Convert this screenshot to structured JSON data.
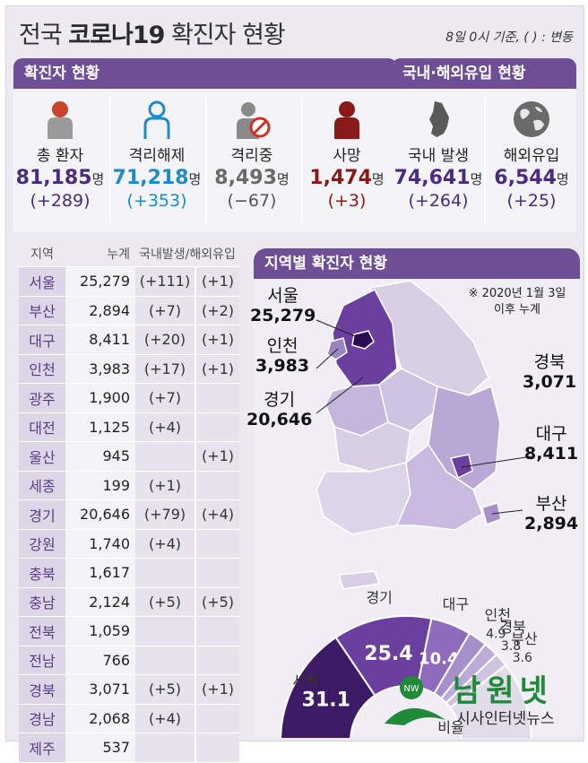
{
  "header": {
    "title_plain": "전국",
    "title_bold": "코로나19",
    "title_rest": "확진자 현황",
    "note": "8일 0시 기준, ( ) : 변동"
  },
  "confirmed_section": {
    "title": "확진자 현황",
    "items": [
      {
        "label": "총 환자",
        "value": "81,185",
        "unit": "명",
        "change": "(+289)",
        "color": "#4a2a82",
        "icon": "person-icon"
      },
      {
        "label": "격리해제",
        "value": "71,218",
        "unit": "명",
        "change": "(+353)",
        "color": "#1d8bc7",
        "icon": "person-outline-icon"
      },
      {
        "label": "격리중",
        "value": "8,493",
        "unit": "명",
        "change": "(−67)",
        "color": "#777777",
        "icon": "person-blocked-icon"
      },
      {
        "label": "사망",
        "value": "1,474",
        "unit": "명",
        "change": "(+3)",
        "color": "#8a1a1a",
        "icon": "person-dark-icon"
      }
    ]
  },
  "origin_section": {
    "title": "국내·해외유입 현황",
    "items": [
      {
        "label": "국내 발생",
        "value": "74,641",
        "unit": "명",
        "change": "(+264)",
        "color": "#4a2a82",
        "icon": "korea-map-icon"
      },
      {
        "label": "해외유입",
        "value": "6,544",
        "unit": "명",
        "change": "(+25)",
        "color": "#4a2a82",
        "icon": "globe-icon"
      }
    ]
  },
  "region_table": {
    "headers": [
      "지역",
      "누계",
      "국내발생/해외유입"
    ],
    "rows": [
      {
        "region": "서울",
        "total": "25,279",
        "domestic": "(+111)",
        "overseas": "(+1)"
      },
      {
        "region": "부산",
        "total": "2,894",
        "domestic": "(+7)",
        "overseas": "(+2)"
      },
      {
        "region": "대구",
        "total": "8,411",
        "domestic": "(+20)",
        "overseas": "(+1)"
      },
      {
        "region": "인천",
        "total": "3,983",
        "domestic": "(+17)",
        "overseas": "(+1)"
      },
      {
        "region": "광주",
        "total": "1,900",
        "domestic": "(+7)",
        "overseas": ""
      },
      {
        "region": "대전",
        "total": "1,125",
        "domestic": "(+4)",
        "overseas": ""
      },
      {
        "region": "울산",
        "total": "945",
        "domestic": "",
        "overseas": "(+1)"
      },
      {
        "region": "세종",
        "total": "199",
        "domestic": "(+1)",
        "overseas": ""
      },
      {
        "region": "경기",
        "total": "20,646",
        "domestic": "(+79)",
        "overseas": "(+4)"
      },
      {
        "region": "강원",
        "total": "1,740",
        "domestic": "(+4)",
        "overseas": ""
      },
      {
        "region": "충북",
        "total": "1,617",
        "domestic": "",
        "overseas": ""
      },
      {
        "region": "충남",
        "total": "2,124",
        "domestic": "(+5)",
        "overseas": "(+5)"
      },
      {
        "region": "전북",
        "total": "1,059",
        "domestic": "",
        "overseas": ""
      },
      {
        "region": "전남",
        "total": "766",
        "domestic": "",
        "overseas": ""
      },
      {
        "region": "경북",
        "total": "3,071",
        "domestic": "(+5)",
        "overseas": "(+1)"
      },
      {
        "region": "경남",
        "total": "2,068",
        "domestic": "(+4)",
        "overseas": ""
      },
      {
        "region": "제주",
        "total": "537",
        "domestic": "",
        "overseas": ""
      }
    ]
  },
  "map_section": {
    "title": "지역별 확진자 현황",
    "note": "※ 2020년 1월 3일 이후 누계",
    "labels": [
      {
        "name": "서울",
        "value": "25,279"
      },
      {
        "name": "인천",
        "value": "3,983"
      },
      {
        "name": "경기",
        "value": "20,646"
      },
      {
        "name": "경북",
        "value": "3,071"
      },
      {
        "name": "대구",
        "value": "8,411"
      },
      {
        "name": "부산",
        "value": "2,894"
      }
    ],
    "colors": {
      "dark": "#4b2378",
      "mid": "#7c5aa6",
      "light": "#b7a6cf",
      "pale": "#d8cfe5"
    }
  },
  "chart_data": {
    "type": "pie",
    "title": "",
    "categories": [
      "서울",
      "경기",
      "대구",
      "인천",
      "경북",
      "부산"
    ],
    "values": [
      31.1,
      25.4,
      10.4,
      4.9,
      3.8,
      3.6
    ],
    "unit": "%",
    "remainder_label": "비율",
    "colors": [
      "#3d1a66",
      "#6b3f9e",
      "#8f6cbb",
      "#a78fca",
      "#bcaad8",
      "#cfc3e2"
    ]
  },
  "watermark": {
    "brand": "남원넷",
    "sub": "시사인터넷뉴스",
    "badge": "NW"
  }
}
